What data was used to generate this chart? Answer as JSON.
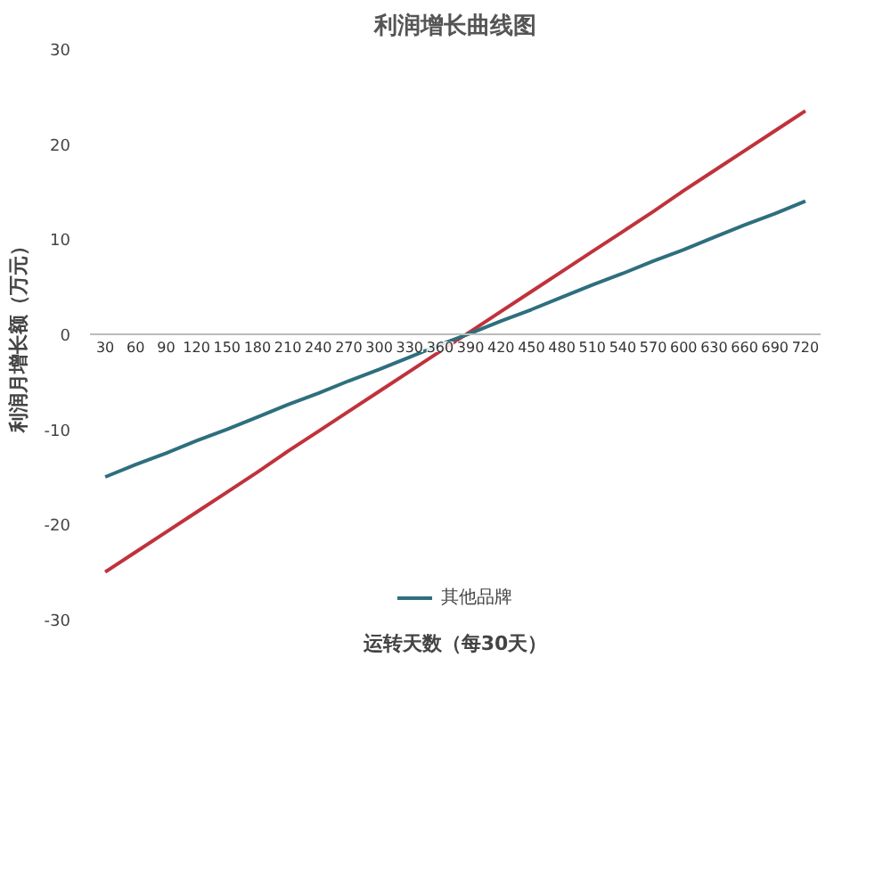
{
  "chart_data": {
    "type": "line",
    "title": "利润增长曲线图",
    "xlabel": "运转天数（每30天）",
    "ylabel": "利润月增长额（万元）",
    "categories": [
      "30",
      "60",
      "90",
      "120",
      "150",
      "180",
      "210",
      "240",
      "270",
      "300",
      "330",
      "360",
      "390",
      "420",
      "450",
      "480",
      "510",
      "540",
      "570",
      "600",
      "630",
      "660",
      "690",
      "720"
    ],
    "series": [
      {
        "color": "#c0323c",
        "values": [
          -25,
          -22.9,
          -20.8,
          -18.7,
          -16.6,
          -14.5,
          -12.3,
          -10.2,
          -8.1,
          -6.0,
          -3.9,
          -1.8,
          0.3,
          2.4,
          4.5,
          6.6,
          8.7,
          10.8,
          12.9,
          15.1,
          17.2,
          19.3,
          21.4,
          23.5
        ]
      },
      {
        "name": "其他品牌",
        "color": "#2e6f7e",
        "values": [
          -15,
          -13.7,
          -12.5,
          -11.2,
          -10.0,
          -8.7,
          -7.4,
          -6.2,
          -4.9,
          -3.7,
          -2.4,
          -1.1,
          0.1,
          1.4,
          2.6,
          3.9,
          5.2,
          6.4,
          7.7,
          8.9,
          10.2,
          11.5,
          12.7,
          14.0
        ]
      }
    ],
    "ylim": [
      -30,
      30
    ],
    "yticks": [
      -30,
      -20,
      -10,
      0,
      10,
      20,
      30
    ],
    "grid": false,
    "legend": "bottom",
    "marker": "none",
    "line_style": "solid"
  }
}
